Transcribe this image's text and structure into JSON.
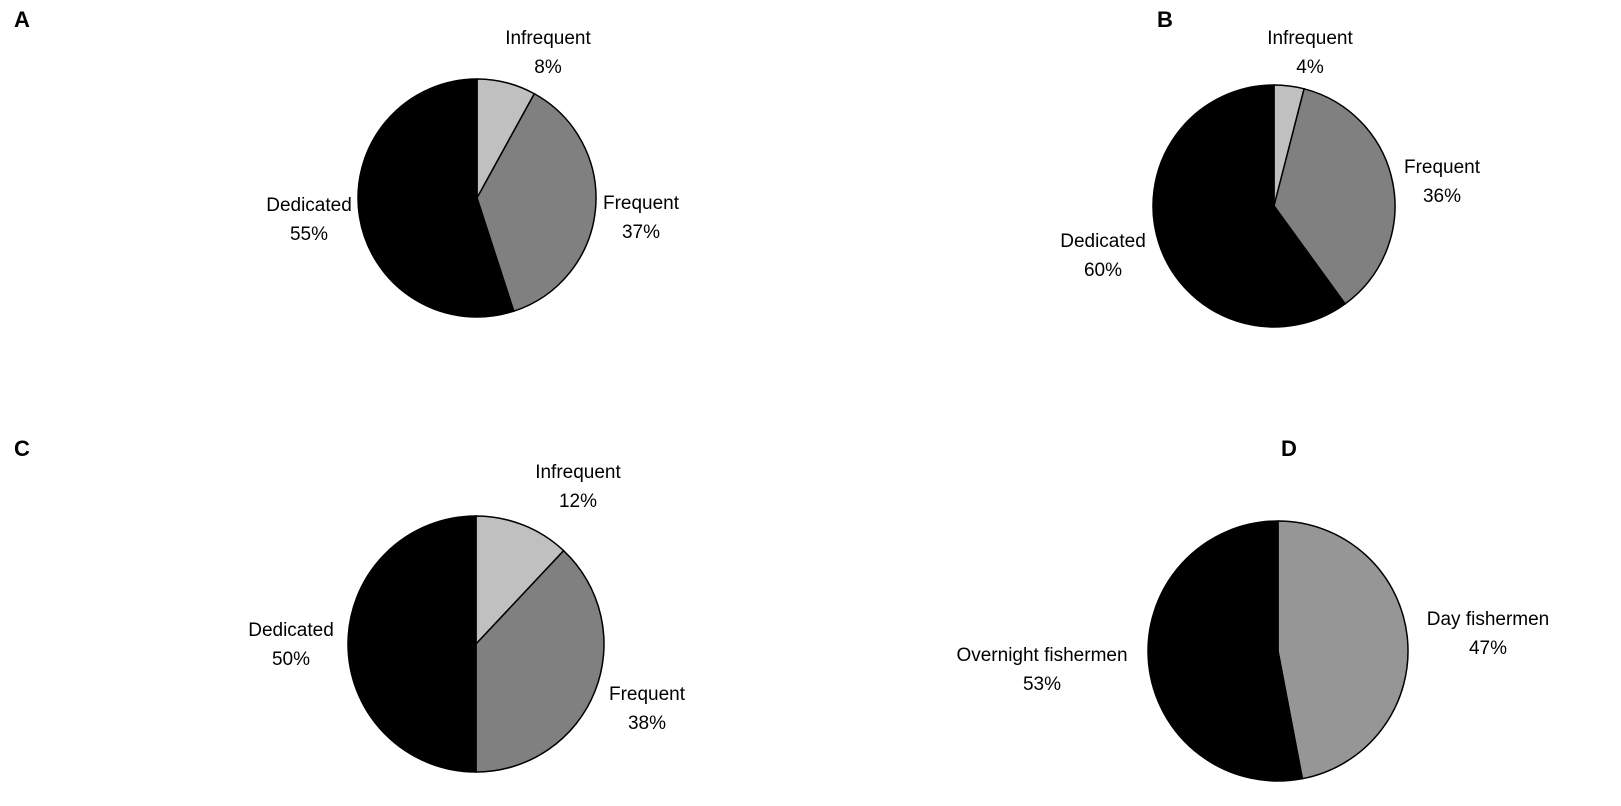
{
  "chart_data": [
    {
      "type": "pie",
      "panel": "A",
      "slices": [
        {
          "label": "Infrequent",
          "value": 8,
          "value_label": "8%",
          "color": "#c0c0c0"
        },
        {
          "label": "Frequent",
          "value": 37,
          "value_label": "37%",
          "color": "#808080"
        },
        {
          "label": "Dedicated",
          "value": 55,
          "value_label": "55%",
          "color": "#000000"
        }
      ]
    },
    {
      "type": "pie",
      "panel": "B",
      "slices": [
        {
          "label": "Infrequent",
          "value": 4,
          "value_label": "4%",
          "color": "#c0c0c0"
        },
        {
          "label": "Frequent",
          "value": 36,
          "value_label": "36%",
          "color": "#808080"
        },
        {
          "label": "Dedicated",
          "value": 60,
          "value_label": "60%",
          "color": "#000000"
        }
      ]
    },
    {
      "type": "pie",
      "panel": "C",
      "slices": [
        {
          "label": "Infrequent",
          "value": 12,
          "value_label": "12%",
          "color": "#c0c0c0"
        },
        {
          "label": "Frequent",
          "value": 38,
          "value_label": "38%",
          "color": "#808080"
        },
        {
          "label": "Dedicated",
          "value": 50,
          "value_label": "50%",
          "color": "#000000"
        }
      ]
    },
    {
      "type": "pie",
      "panel": "D",
      "slices": [
        {
          "label": "Day fishermen",
          "value": 47,
          "value_label": "47%",
          "color": "#969696"
        },
        {
          "label": "Overnight fishermen",
          "value": 53,
          "value_label": "53%",
          "color": "#000000"
        }
      ]
    }
  ]
}
